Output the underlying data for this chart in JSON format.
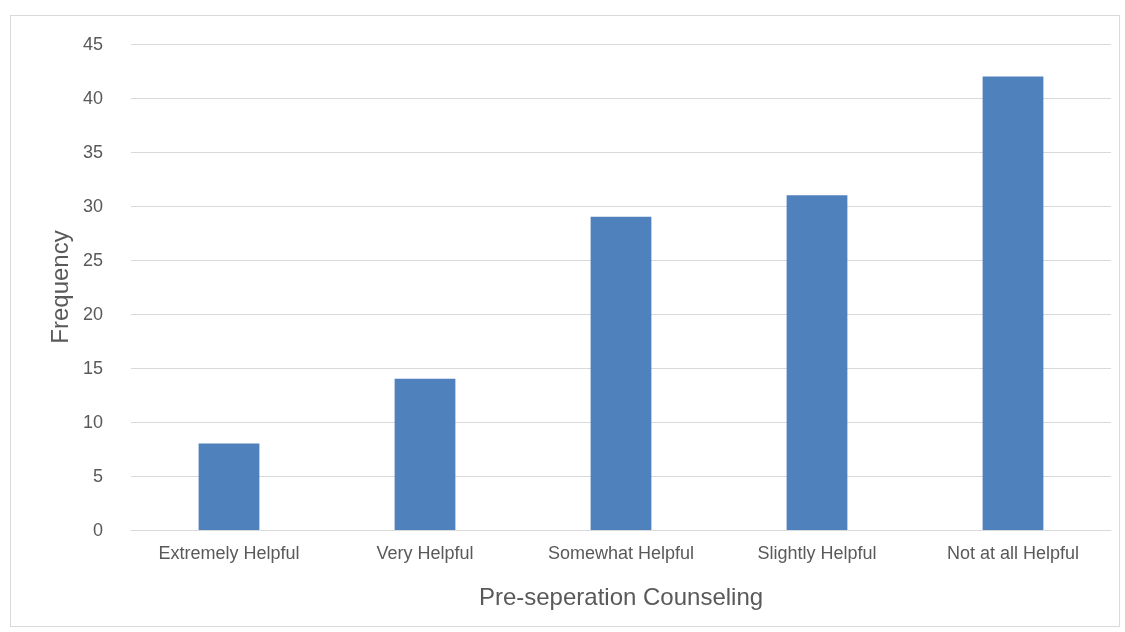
{
  "chart_data": {
    "type": "bar",
    "xlabel": "Pre-seperation Counseling",
    "ylabel": "Frequency",
    "categories": [
      "Extremely Helpful",
      "Very Helpful",
      "Somewhat Helpful",
      "Slightly Helpful",
      "Not at all Helpful"
    ],
    "values": [
      8,
      14,
      29,
      31,
      42
    ],
    "color": "#4f81bd",
    "ylim": [
      0,
      45
    ],
    "yticks": [
      0,
      5,
      10,
      15,
      20,
      25,
      30,
      35,
      40,
      45
    ],
    "grid": "y"
  }
}
